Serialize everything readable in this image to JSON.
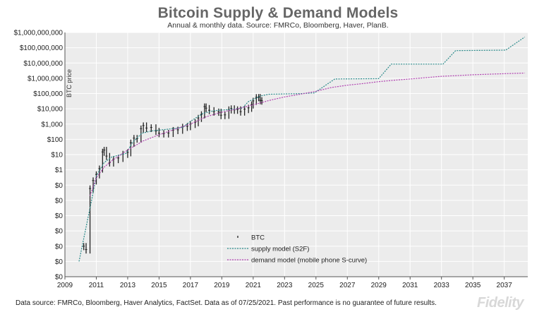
{
  "chart_data": {
    "type": "line",
    "title": "Bitcoin Supply & Demand Models",
    "subtitle": "Annual & monthly data.  Source: FMRCo, Bloomberg, Haver, PlanB.",
    "ylabel": "BTC price",
    "xlabel": "",
    "y_scale": "log",
    "ylim": [
      1e-07,
      1000000000
    ],
    "xlim": [
      2009,
      2038.5
    ],
    "x_ticks": [
      2009,
      2011,
      2013,
      2015,
      2017,
      2019,
      2021,
      2023,
      2025,
      2027,
      2029,
      2031,
      2033,
      2035,
      2037
    ],
    "y_ticks": [
      {
        "value": 1e-07,
        "label": "$0"
      },
      {
        "value": 1e-06,
        "label": "$0"
      },
      {
        "value": 1e-05,
        "label": "$0"
      },
      {
        "value": 0.0001,
        "label": "$0"
      },
      {
        "value": 0.001,
        "label": "$0"
      },
      {
        "value": 0.01,
        "label": "$0"
      },
      {
        "value": 0.1,
        "label": "$0"
      },
      {
        "value": 1,
        "label": "$1"
      },
      {
        "value": 10,
        "label": "$10"
      },
      {
        "value": 100,
        "label": "$100"
      },
      {
        "value": 1000,
        "label": "$1,000"
      },
      {
        "value": 10000,
        "label": "$10,000"
      },
      {
        "value": 100000,
        "label": "$100,000"
      },
      {
        "value": 1000000,
        "label": "$1,000,000"
      },
      {
        "value": 10000000,
        "label": "$10,000,000"
      },
      {
        "value": 100000000,
        "label": "$100,000,000"
      },
      {
        "value": 1000000000,
        "label": "$1,000,000,000"
      }
    ],
    "grid": true,
    "legend_position": "bottom-center",
    "series": [
      {
        "name": "BTC",
        "style": "bars",
        "color": "#222222",
        "points": [
          [
            2010.2,
            1e-05
          ],
          [
            2010.35,
            6e-06
          ],
          [
            2010.6,
            0.06
          ],
          [
            2010.8,
            0.2
          ],
          [
            2011.0,
            0.5
          ],
          [
            2011.2,
            1.2
          ],
          [
            2011.4,
            15
          ],
          [
            2011.5,
            20
          ],
          [
            2011.65,
            8
          ],
          [
            2011.85,
            3
          ],
          [
            2012.1,
            5
          ],
          [
            2012.4,
            6
          ],
          [
            2012.7,
            11
          ],
          [
            2013.0,
            14
          ],
          [
            2013.2,
            60
          ],
          [
            2013.4,
            120
          ],
          [
            2013.6,
            110
          ],
          [
            2013.85,
            500
          ],
          [
            2014.0,
            800
          ],
          [
            2014.2,
            550
          ],
          [
            2014.5,
            600
          ],
          [
            2014.8,
            350
          ],
          [
            2015.0,
            250
          ],
          [
            2015.3,
            240
          ],
          [
            2015.6,
            260
          ],
          [
            2015.9,
            400
          ],
          [
            2016.2,
            420
          ],
          [
            2016.5,
            650
          ],
          [
            2016.8,
            720
          ],
          [
            2017.0,
            1000
          ],
          [
            2017.3,
            1300
          ],
          [
            2017.5,
            2500
          ],
          [
            2017.7,
            4300
          ],
          [
            2017.9,
            14000
          ],
          [
            2018.0,
            11000
          ],
          [
            2018.2,
            8000
          ],
          [
            2018.5,
            6500
          ],
          [
            2018.8,
            6300
          ],
          [
            2018.95,
            3800
          ],
          [
            2019.2,
            4000
          ],
          [
            2019.45,
            9000
          ],
          [
            2019.6,
            10500
          ],
          [
            2019.8,
            8500
          ],
          [
            2020.0,
            9000
          ],
          [
            2020.2,
            6500
          ],
          [
            2020.45,
            9500
          ],
          [
            2020.7,
            11500
          ],
          [
            2020.9,
            19000
          ],
          [
            2021.0,
            33000
          ],
          [
            2021.2,
            57000
          ],
          [
            2021.35,
            58000
          ],
          [
            2021.45,
            36000
          ],
          [
            2021.55,
            34000
          ]
        ]
      },
      {
        "name": "supply model (S2F)",
        "style": "dotted",
        "color": "#2a8a8a",
        "points": [
          [
            2009.9,
            1e-06
          ],
          [
            2010.3,
            0.0001
          ],
          [
            2010.7,
            0.01
          ],
          [
            2011.0,
            0.4
          ],
          [
            2011.5,
            3
          ],
          [
            2012.0,
            7
          ],
          [
            2012.9,
            12
          ],
          [
            2013.3,
            60
          ],
          [
            2013.9,
            250
          ],
          [
            2014.5,
            350
          ],
          [
            2015.5,
            450
          ],
          [
            2016.5,
            600
          ],
          [
            2017.0,
            1500
          ],
          [
            2017.8,
            5000
          ],
          [
            2018.5,
            7500
          ],
          [
            2019.5,
            9000
          ],
          [
            2020.3,
            11000
          ],
          [
            2020.7,
            30000
          ],
          [
            2021.5,
            70000
          ],
          [
            2022.0,
            90000
          ],
          [
            2024.2,
            100000
          ],
          [
            2024.9,
            110000
          ],
          [
            2026.2,
            900000
          ],
          [
            2029.0,
            950000
          ],
          [
            2029.8,
            8500000
          ],
          [
            2033.1,
            8500000
          ],
          [
            2033.9,
            65000000
          ],
          [
            2037.1,
            70000000
          ],
          [
            2038.3,
            500000000
          ]
        ]
      },
      {
        "name": "demand model (mobile phone S-curve)",
        "style": "dotted",
        "color": "#b040b0",
        "points": [
          [
            2010.6,
            0.02
          ],
          [
            2011.0,
            0.3
          ],
          [
            2011.5,
            1.5
          ],
          [
            2012.0,
            4
          ],
          [
            2012.5,
            9
          ],
          [
            2013.0,
            20
          ],
          [
            2013.5,
            40
          ],
          [
            2014.0,
            80
          ],
          [
            2015.0,
            200
          ],
          [
            2016.0,
            450
          ],
          [
            2017.0,
            1000
          ],
          [
            2018.0,
            3000
          ],
          [
            2019.0,
            6000
          ],
          [
            2020.0,
            10000
          ],
          [
            2021.0,
            18000
          ],
          [
            2022.0,
            35000
          ],
          [
            2023.0,
            60000
          ],
          [
            2024.0,
            90000
          ],
          [
            2025.0,
            140000
          ],
          [
            2026.0,
            250000
          ],
          [
            2027.0,
            350000
          ],
          [
            2028.0,
            450000
          ],
          [
            2029.0,
            600000
          ],
          [
            2030.0,
            750000
          ],
          [
            2031.0,
            900000
          ],
          [
            2032.0,
            1100000
          ],
          [
            2033.0,
            1350000
          ],
          [
            2034.0,
            1500000
          ],
          [
            2035.0,
            1700000
          ],
          [
            2036.0,
            1850000
          ],
          [
            2037.0,
            2000000
          ],
          [
            2038.3,
            2200000
          ]
        ]
      }
    ]
  },
  "footer": "Data source: FMRCo, Bloomberg, Haver Analytics, FactSet. Data as of 07/25/2021. Past performance is no guarantee of future results.",
  "logo_text": "Fidelity"
}
